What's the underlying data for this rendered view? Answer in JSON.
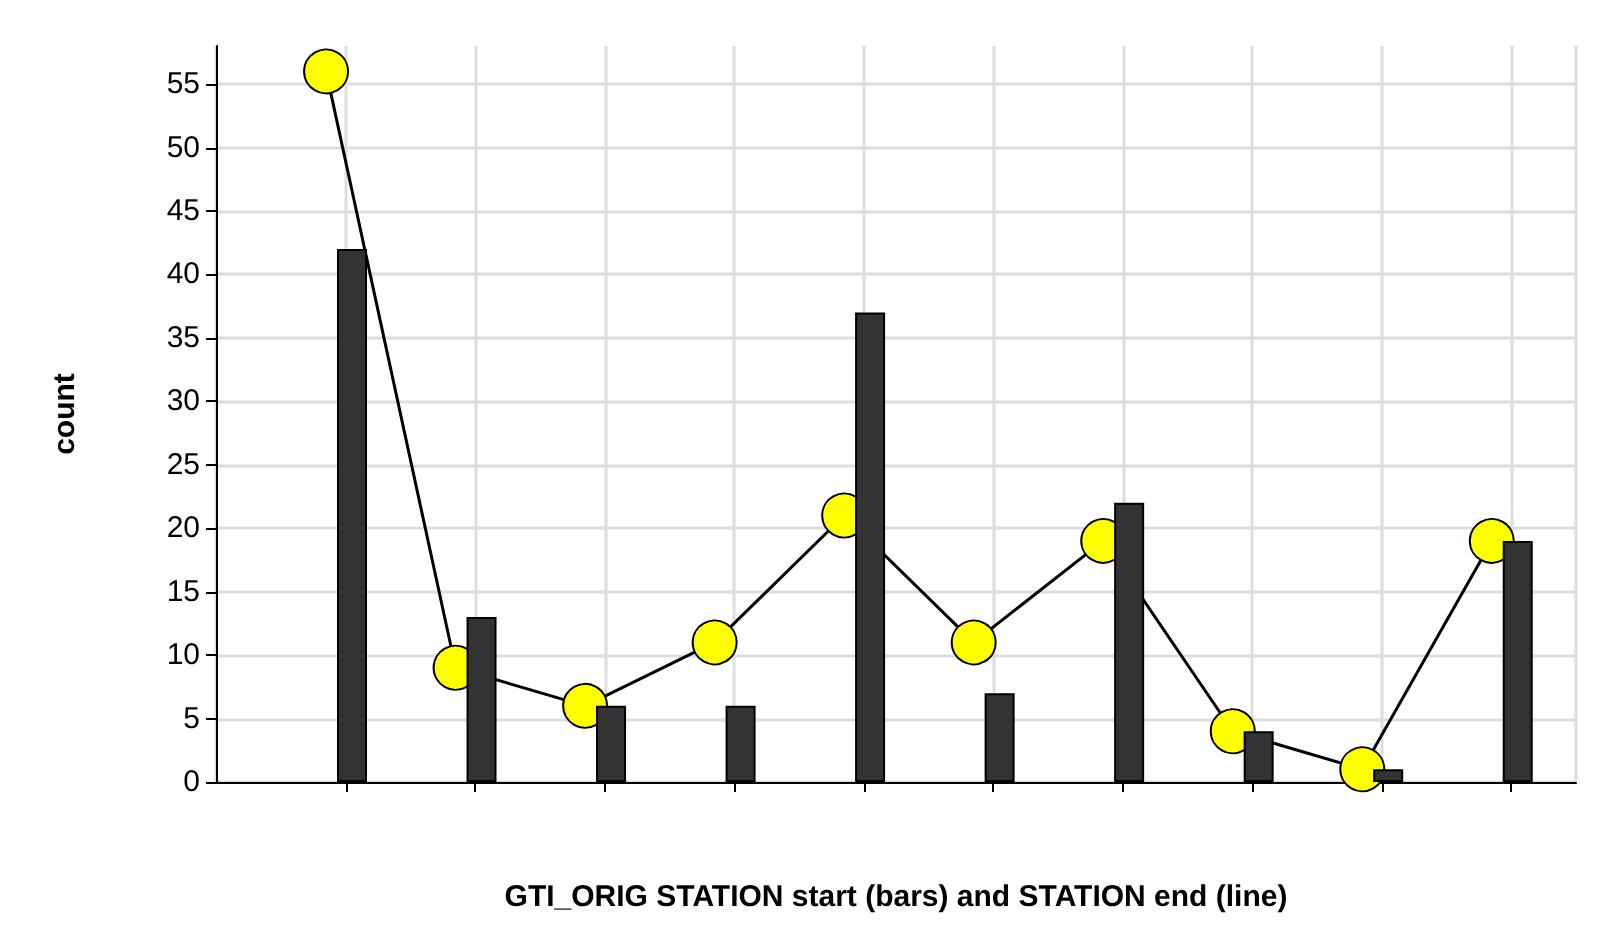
{
  "chart_data": {
    "type": "bar",
    "xlabel": "GTI_ORIG STATION start (bars) and STATION end (line)",
    "ylabel": "count",
    "categories": [
      null,
      null,
      null,
      null,
      null,
      null,
      null,
      null,
      null,
      null
    ],
    "series": [
      {
        "color": "#333333",
        "values": [
          42,
          13,
          6,
          6,
          37,
          7,
          22,
          4,
          1,
          19
        ]
      },
      {
        "type": "line",
        "color": "#ffff00",
        "values": [
          56,
          9,
          6,
          11,
          21,
          11,
          19,
          4,
          1,
          19
        ],
        "marker": "circle",
        "line_style": "solid"
      }
    ],
    "ylim": [
      0,
      58
    ],
    "yticks": [
      0,
      5,
      10,
      15,
      20,
      25,
      30,
      35,
      40,
      45,
      50,
      55
    ],
    "grid": true
  }
}
